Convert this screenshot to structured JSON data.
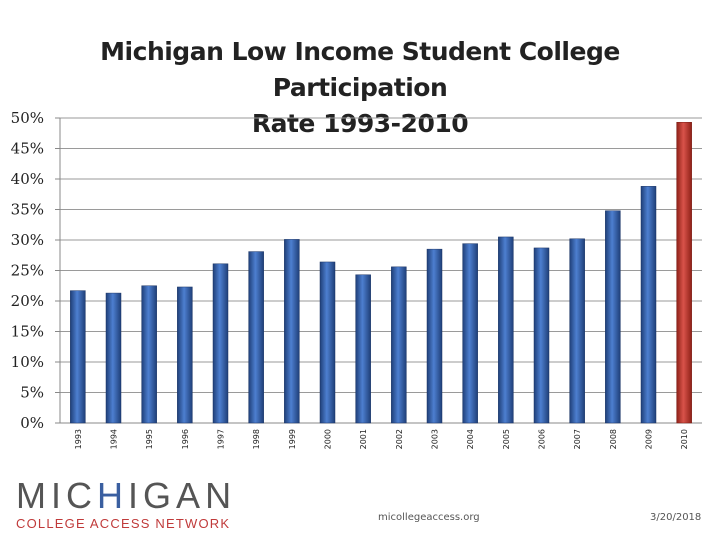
{
  "title_line1": "Michigan Low Income Student College Participation",
  "title_line2": "Rate 1993-2010",
  "footer": {
    "url": "micollegeaccess.org",
    "date": "3/20/2018"
  },
  "logo": {
    "letters": [
      "M",
      "I",
      "C",
      "H",
      "I",
      "G",
      "A",
      "N"
    ],
    "letter_colors": [
      "#555555",
      "#555555",
      "#555555",
      "#3a5fa0",
      "#555555",
      "#555555",
      "#555555",
      "#555555"
    ],
    "subtitle": "COLLEGE ACCESS NETWORK",
    "subtitle_color": "#c03a3a"
  },
  "chart_data": {
    "type": "bar",
    "title": "Michigan Low Income Student College Participation Rate 1993-2010",
    "categories": [
      "1993",
      "1994",
      "1995",
      "1996",
      "1997",
      "1998",
      "1999",
      "2000",
      "2001",
      "2002",
      "2003",
      "2004",
      "2005",
      "2006",
      "2007",
      "2008",
      "2009",
      "2010"
    ],
    "values": [
      21.7,
      21.3,
      22.5,
      22.3,
      26.1,
      28.1,
      30.1,
      26.4,
      24.3,
      25.6,
      28.5,
      29.4,
      30.5,
      28.7,
      30.2,
      34.8,
      38.8,
      49.3
    ],
    "ylim": [
      0,
      50
    ],
    "yticks": [
      0,
      5,
      10,
      15,
      20,
      25,
      30,
      35,
      40,
      45,
      50
    ],
    "ytick_labels": [
      "0%",
      "5%",
      "10%",
      "15%",
      "20%",
      "25%",
      "30%",
      "35%",
      "40%",
      "45%",
      "50%"
    ],
    "grid": true,
    "colors": {
      "default": "#3d6bb3",
      "highlight": "#c0392b"
    },
    "highlight_index": 17
  }
}
